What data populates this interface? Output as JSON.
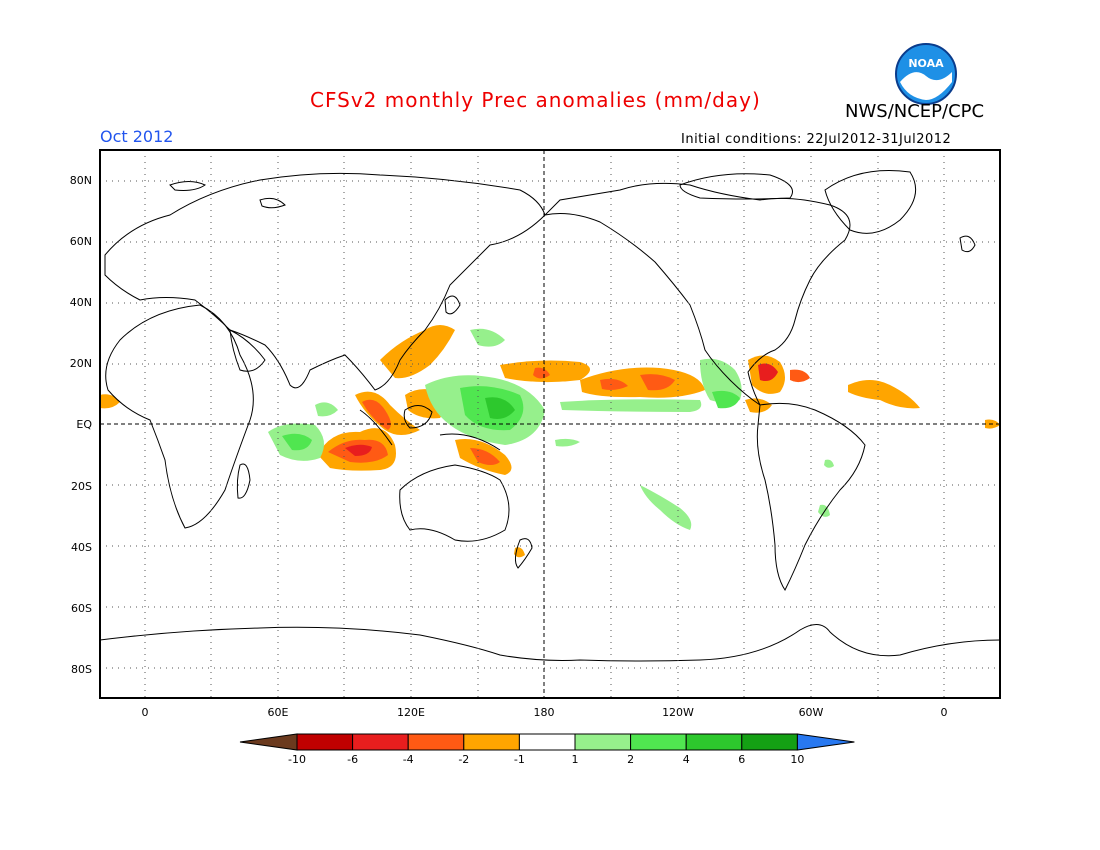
{
  "title": "CFSv2 monthly Prec anomalies (mm/day)",
  "agency": "NWS/NCEP/CPC",
  "logo_text": "NOAA",
  "month": "Oct 2012",
  "initial_conditions": "Initial conditions: 22Jul2012-31Jul2012",
  "lat_labels": [
    "80N",
    "60N",
    "40N",
    "20N",
    "EQ",
    "20S",
    "40S",
    "60S",
    "80S"
  ],
  "lon_labels": [
    "0",
    "60E",
    "120E",
    "180",
    "120W",
    "60W",
    "0"
  ],
  "colorbar": {
    "labels": [
      "-10",
      "-6",
      "-4",
      "-2",
      "-1",
      "1",
      "2",
      "4",
      "6",
      "10"
    ],
    "colors": [
      "#6b3a1e",
      "#c00000",
      "#e81e1e",
      "#ff5a14",
      "#ffa500",
      "#ffffff",
      "#96f08c",
      "#50e650",
      "#2dc82d",
      "#14a014",
      "#2878f0"
    ]
  },
  "colors": {
    "title": "#ee0000",
    "month": "#2255ee",
    "neg1": "#ffa500",
    "neg2": "#ff5a14",
    "neg3": "#e81e1e",
    "pos1": "#96f08c",
    "pos2": "#50e650",
    "pos3": "#2dc82d"
  }
}
